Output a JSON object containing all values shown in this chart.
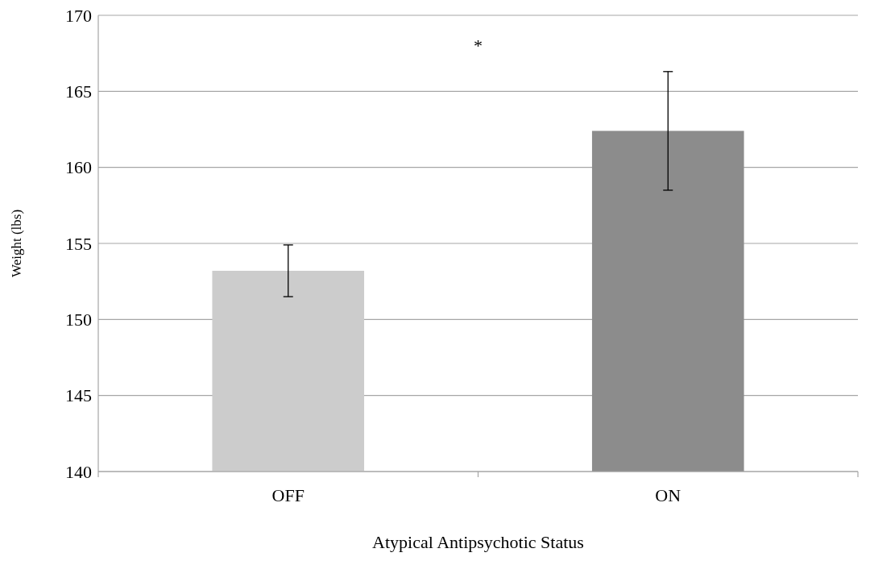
{
  "chart_data": {
    "type": "bar",
    "categories": [
      "OFF",
      "ON"
    ],
    "values": [
      153.2,
      162.4
    ],
    "colors": [
      "#cccccc",
      "#8c8c8c"
    ],
    "errors": [
      1.7,
      3.9
    ],
    "ylim": [
      140,
      170
    ],
    "yticks": [
      140,
      145,
      150,
      155,
      160,
      165,
      170
    ],
    "grid": "y",
    "xlabel": "Atypical Antipsychotic Status",
    "ylabel": "Weight (lbs)",
    "annotations": [
      "*"
    ]
  }
}
